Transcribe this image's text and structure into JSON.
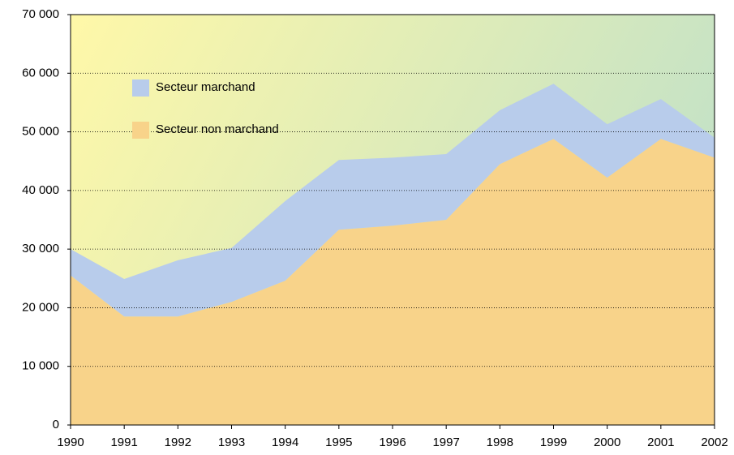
{
  "chart_data": {
    "type": "stacked_area",
    "x": [
      1990,
      1991,
      1992,
      1993,
      1994,
      1995,
      1996,
      1997,
      1998,
      1999,
      2000,
      2001,
      2002
    ],
    "series": [
      {
        "name": "Secteur marchand",
        "color": "#b8cceb",
        "values": [
          4500,
          6400,
          9600,
          9200,
          13600,
          11900,
          11600,
          11200,
          9200,
          9400,
          9100,
          6800,
          3400
        ]
      },
      {
        "name": "Secteur non marchand",
        "color": "#f8d38a",
        "values": [
          25500,
          18500,
          18500,
          21000,
          24600,
          33300,
          34000,
          35000,
          44500,
          48800,
          42200,
          48800,
          45600
        ]
      }
    ],
    "xlim": [
      1990,
      2002
    ],
    "xticks": [
      1990,
      1991,
      1992,
      1993,
      1994,
      1995,
      1996,
      1997,
      1998,
      1999,
      2000,
      2001,
      2002
    ],
    "ylim": [
      0,
      70000
    ],
    "yticks": [
      0,
      {
        "value": 10000,
        "label": "10 000"
      },
      {
        "value": 20000,
        "label": "20 000"
      },
      {
        "value": 30000,
        "label": "30 000"
      },
      {
        "value": 40000,
        "label": "40 000"
      },
      {
        "value": 50000,
        "label": "50 000"
      },
      {
        "value": 60000,
        "label": "60 000"
      },
      {
        "value": 70000,
        "label": "70 000"
      }
    ],
    "grid": true,
    "legend": "top-left"
  }
}
